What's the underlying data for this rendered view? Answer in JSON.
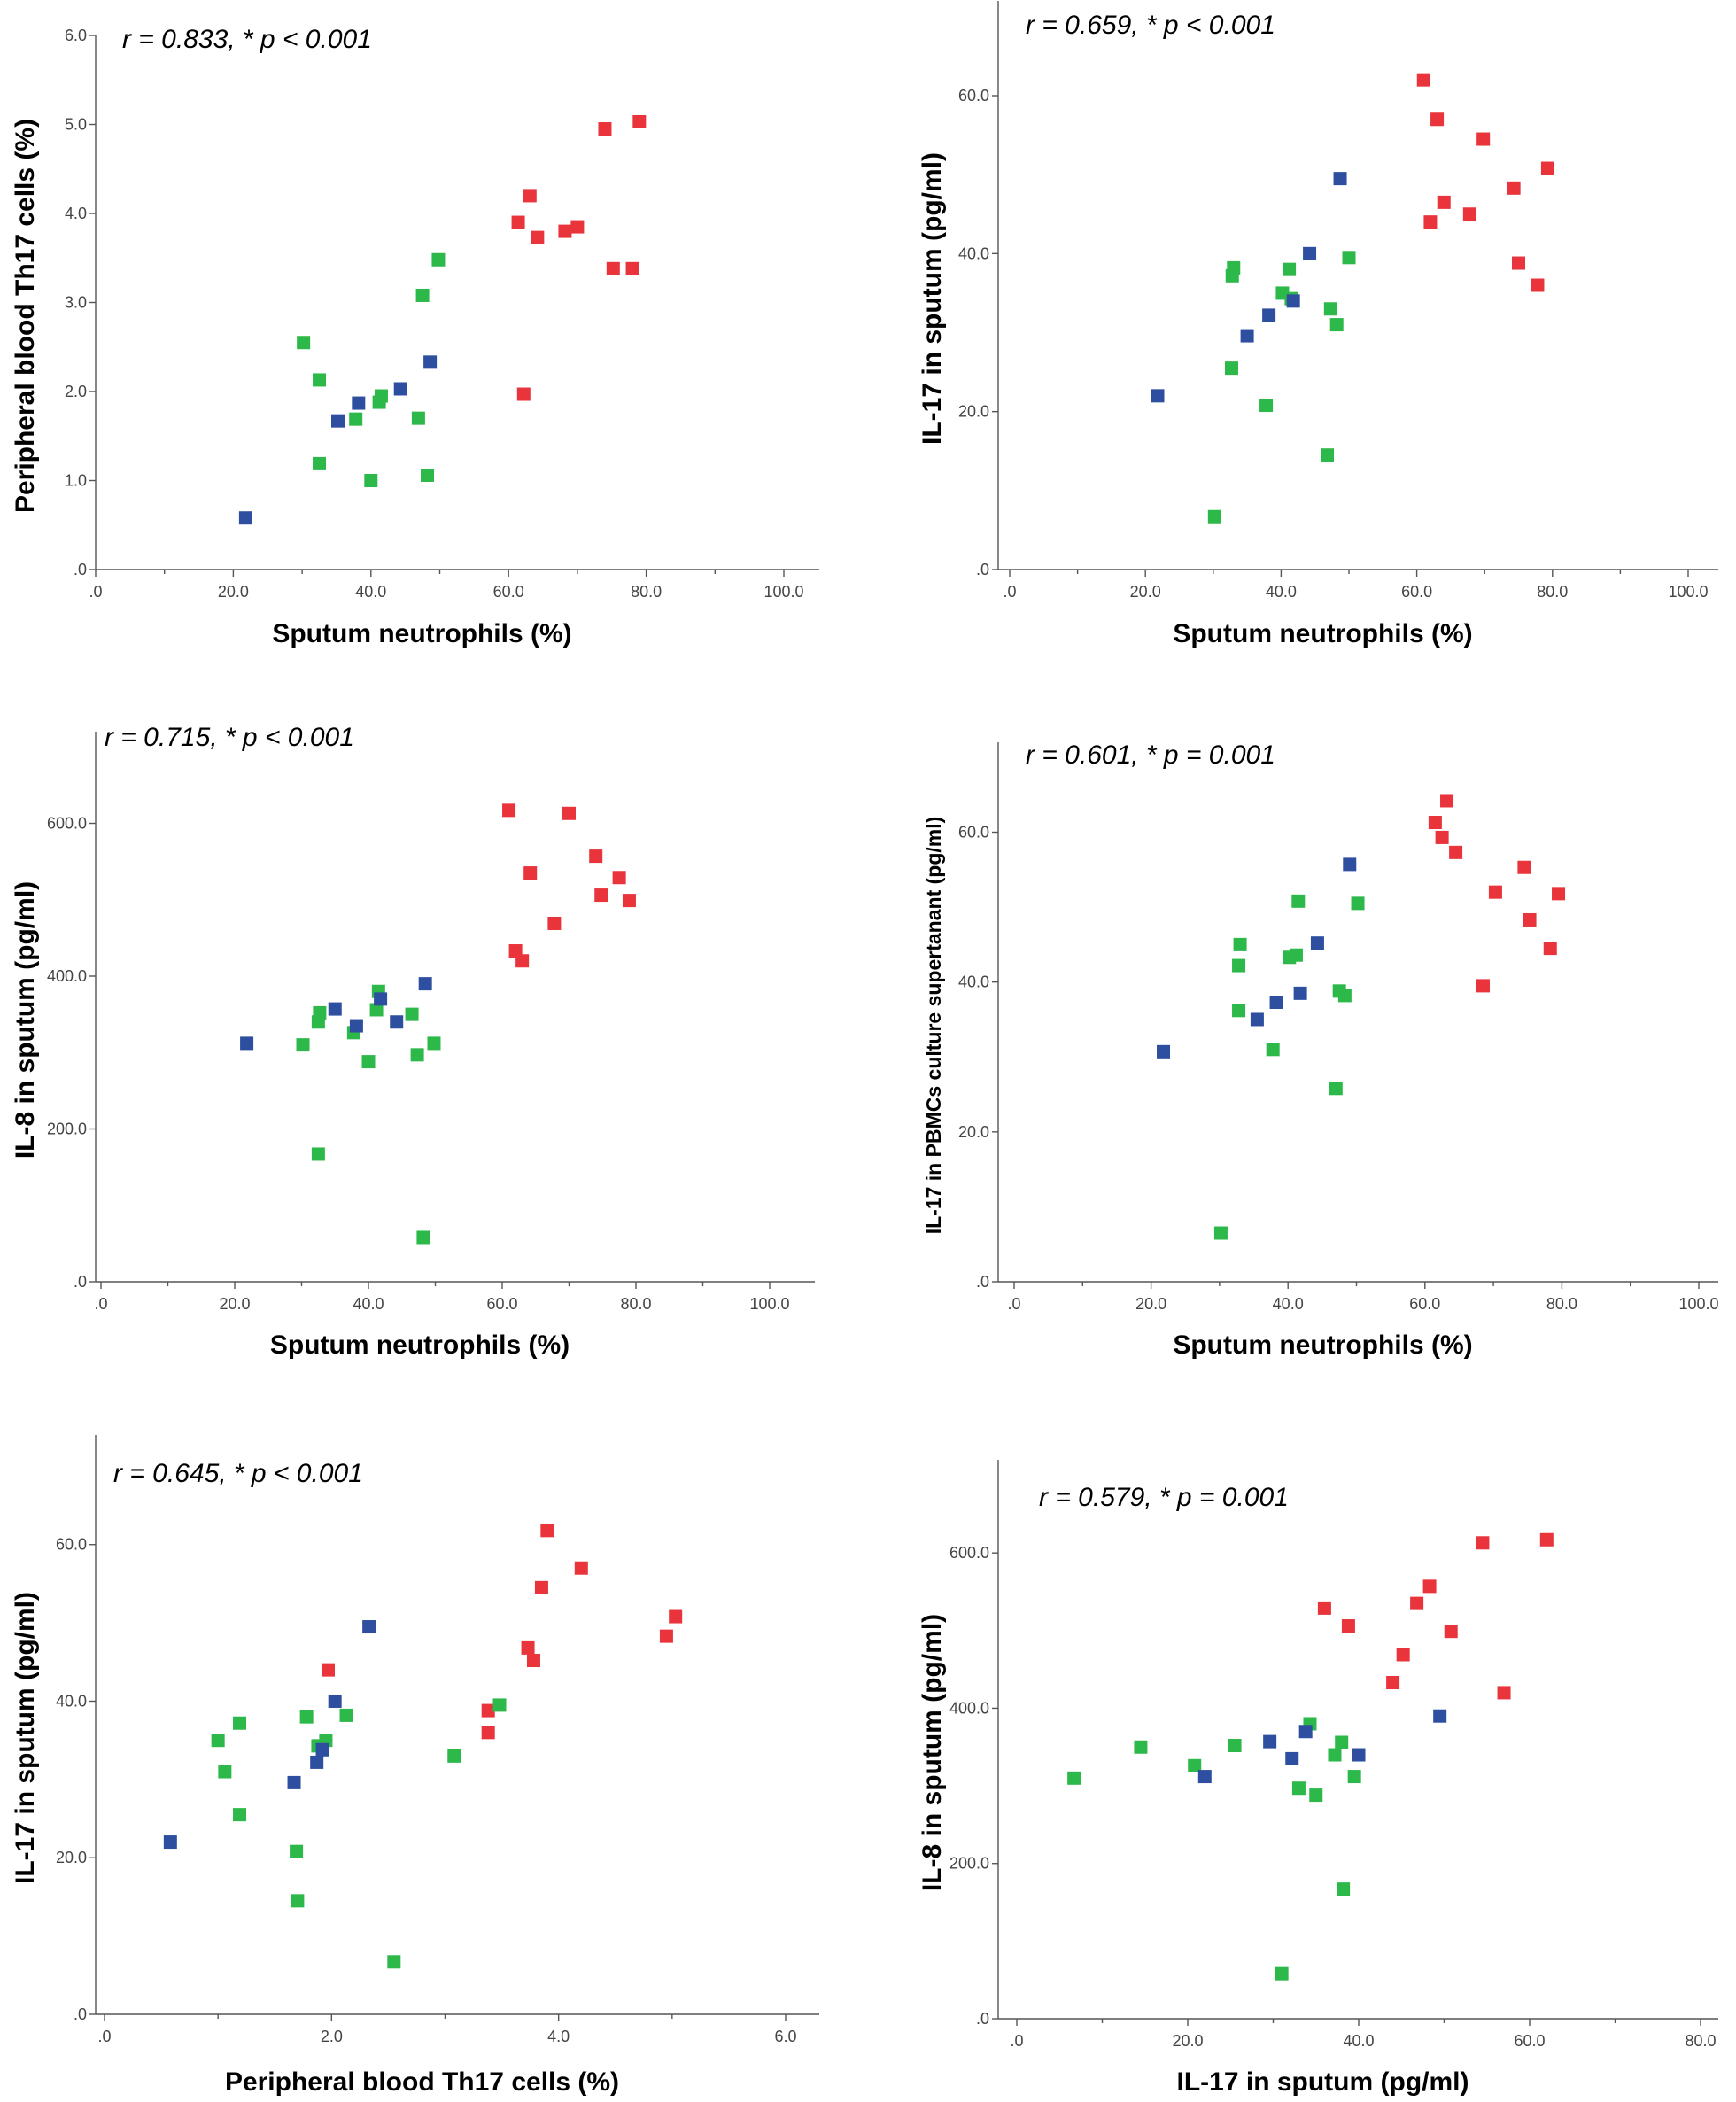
{
  "colors": {
    "red": "#e8343a",
    "green": "#2db84a",
    "blue": "#2e4fa0"
  },
  "chart_data": [
    {
      "type": "scatter",
      "annotation": "r = 0.833, * p < 0.001",
      "xlabel": "Sputum neutrophils (%)",
      "ylabel": "Peripheral blood Th17 cells (%)",
      "xlim": [
        0,
        100
      ],
      "ylim": [
        0,
        6
      ],
      "xticks": [
        0,
        20,
        40,
        60,
        80,
        100
      ],
      "xminor": [
        10,
        30,
        50,
        70,
        90
      ],
      "xtick_labels": [
        ".0",
        "20.0",
        "40.0",
        "60.0",
        "80.0",
        "100.0"
      ],
      "yticks": [
        0,
        1,
        2,
        3,
        4,
        5,
        6
      ],
      "ytick_labels": [
        ".0",
        "1.0",
        "2.0",
        "3.0",
        "4.0",
        "5.0",
        "6.0"
      ],
      "series": [
        {
          "name": "red",
          "color": "red",
          "points": [
            [
              61.4,
              3.9
            ],
            [
              63.1,
              4.2
            ],
            [
              64.2,
              3.73
            ],
            [
              68.2,
              3.8
            ],
            [
              70.0,
              3.85
            ],
            [
              74.0,
              4.95
            ],
            [
              75.2,
              3.38
            ],
            [
              78.0,
              3.38
            ],
            [
              79.0,
              5.03
            ],
            [
              62.2,
              1.97
            ]
          ]
        },
        {
          "name": "green",
          "color": "green",
          "points": [
            [
              30.2,
              2.55
            ],
            [
              32.5,
              2.13
            ],
            [
              32.5,
              1.19
            ],
            [
              37.8,
              1.69
            ],
            [
              40.0,
              1.0
            ],
            [
              41.2,
              1.88
            ],
            [
              41.5,
              1.95
            ],
            [
              46.9,
              1.7
            ],
            [
              47.5,
              3.08
            ],
            [
              48.2,
              1.06
            ],
            [
              49.8,
              3.48
            ]
          ]
        },
        {
          "name": "blue",
          "color": "blue",
          "points": [
            [
              21.8,
              0.58
            ],
            [
              35.2,
              1.67
            ],
            [
              38.2,
              1.87
            ],
            [
              44.3,
              2.03
            ],
            [
              48.6,
              2.33
            ]
          ]
        }
      ]
    },
    {
      "type": "scatter",
      "annotation": "r = 0.659, * p < 0.001",
      "xlabel": "Sputum neutrophils (%)",
      "ylabel": "IL-17 in sputum (pg/ml)",
      "xlim": [
        0,
        100
      ],
      "ylim": [
        0,
        72
      ],
      "xticks": [
        0,
        20,
        40,
        60,
        80,
        100
      ],
      "xminor": [
        10,
        30,
        50,
        70,
        90
      ],
      "xtick_labels": [
        ".0",
        "20.0",
        "40.0",
        "60.0",
        "80.0",
        "100.0"
      ],
      "yticks": [
        0,
        20,
        40,
        60
      ],
      "ytick_labels": [
        ".0",
        "20.0",
        "40.0",
        "60.0"
      ],
      "series": [
        {
          "name": "red",
          "color": "red",
          "points": [
            [
              61.0,
              62.0
            ],
            [
              62.0,
              44.0
            ],
            [
              63.0,
              57.0
            ],
            [
              64.0,
              46.5
            ],
            [
              67.8,
              45.0
            ],
            [
              69.8,
              54.5
            ],
            [
              74.3,
              48.3
            ],
            [
              75.0,
              38.8
            ],
            [
              77.8,
              36.0
            ],
            [
              79.3,
              50.8
            ]
          ]
        },
        {
          "name": "green",
          "color": "green",
          "points": [
            [
              30.2,
              6.7
            ],
            [
              32.7,
              25.5
            ],
            [
              32.8,
              37.2
            ],
            [
              33.0,
              38.2
            ],
            [
              37.8,
              20.8
            ],
            [
              40.2,
              35.0
            ],
            [
              41.2,
              38.0
            ],
            [
              41.5,
              34.3
            ],
            [
              46.8,
              14.5
            ],
            [
              47.3,
              33.0
            ],
            [
              48.2,
              31.0
            ],
            [
              50.0,
              39.5
            ]
          ]
        },
        {
          "name": "blue",
          "color": "blue",
          "points": [
            [
              21.8,
              22.0
            ],
            [
              35.0,
              29.6
            ],
            [
              38.2,
              32.2
            ],
            [
              41.8,
              34.0
            ],
            [
              44.2,
              40.0
            ],
            [
              48.7,
              49.5
            ]
          ]
        }
      ]
    },
    {
      "type": "scatter",
      "annotation": "r = 0.715, * p < 0.001",
      "xlabel": "Sputum neutrophils (%)",
      "ylabel": "IL-8 in sputum (pg/ml)",
      "xlim": [
        0,
        100
      ],
      "ylim": [
        0,
        720
      ],
      "xticks": [
        0,
        20,
        40,
        60,
        80,
        100
      ],
      "xminor": [
        10,
        30,
        50,
        70,
        90
      ],
      "xtick_labels": [
        ".0",
        "20.0",
        "40.0",
        "60.0",
        "80.0",
        "100.0"
      ],
      "yticks": [
        0,
        200,
        400,
        600
      ],
      "ytick_labels": [
        ".0",
        "200.0",
        "400.0",
        "600.0"
      ],
      "series": [
        {
          "name": "red",
          "color": "red",
          "points": [
            [
              61.0,
              617
            ],
            [
              62.0,
              433
            ],
            [
              63.0,
              420
            ],
            [
              64.2,
              535
            ],
            [
              67.8,
              469
            ],
            [
              70.0,
              613
            ],
            [
              74.0,
              557
            ],
            [
              74.8,
              506
            ],
            [
              77.5,
              529
            ],
            [
              79.0,
              499
            ]
          ]
        },
        {
          "name": "green",
          "color": "green",
          "points": [
            [
              30.2,
              310
            ],
            [
              32.5,
              167
            ],
            [
              32.5,
              340
            ],
            [
              32.7,
              352
            ],
            [
              37.8,
              326
            ],
            [
              40.0,
              288
            ],
            [
              41.2,
              356
            ],
            [
              41.5,
              380
            ],
            [
              46.5,
              350
            ],
            [
              47.3,
              297
            ],
            [
              48.2,
              58
            ],
            [
              49.8,
              312
            ]
          ]
        },
        {
          "name": "blue",
          "color": "blue",
          "points": [
            [
              21.8,
              312
            ],
            [
              35.0,
              357
            ],
            [
              38.2,
              335
            ],
            [
              41.8,
              370
            ],
            [
              44.2,
              340
            ],
            [
              48.5,
              390
            ]
          ]
        }
      ]
    },
    {
      "type": "scatter",
      "annotation": "r = 0.601, * p = 0.001",
      "xlabel": "Sputum neutrophils (%)",
      "ylabel": "IL-17 in PBMCs culture supertanant (pg/ml)",
      "xlim": [
        0,
        100
      ],
      "ylim": [
        0,
        72
      ],
      "xticks": [
        0,
        20,
        40,
        60,
        80,
        100
      ],
      "xminor": [
        10,
        30,
        50,
        70,
        90
      ],
      "xtick_labels": [
        ".0",
        "20.0",
        "40.0",
        "60.0",
        "80.0",
        "100.0"
      ],
      "yticks": [
        0,
        20,
        40,
        60
      ],
      "ytick_labels": [
        ".0",
        "20.0",
        "40.0",
        "60.0"
      ],
      "series": [
        {
          "name": "red",
          "color": "red",
          "points": [
            [
              61.5,
              61.3
            ],
            [
              62.5,
              59.3
            ],
            [
              63.2,
              64.2
            ],
            [
              64.5,
              57.3
            ],
            [
              68.5,
              39.5
            ],
            [
              70.3,
              52.0
            ],
            [
              74.5,
              55.3
            ],
            [
              75.3,
              48.3
            ],
            [
              78.3,
              44.5
            ],
            [
              79.5,
              51.8
            ]
          ]
        },
        {
          "name": "green",
          "color": "green",
          "points": [
            [
              30.2,
              6.5
            ],
            [
              32.8,
              36.2
            ],
            [
              32.8,
              42.2
            ],
            [
              33.0,
              45.0
            ],
            [
              37.8,
              31.0
            ],
            [
              40.2,
              43.3
            ],
            [
              41.2,
              43.6
            ],
            [
              41.5,
              50.8
            ],
            [
              47.0,
              25.8
            ],
            [
              47.5,
              38.8
            ],
            [
              48.3,
              38.2
            ],
            [
              50.2,
              50.5
            ]
          ]
        },
        {
          "name": "blue",
          "color": "blue",
          "points": [
            [
              21.8,
              30.7
            ],
            [
              35.5,
              35.0
            ],
            [
              38.3,
              37.3
            ],
            [
              41.8,
              38.5
            ],
            [
              44.3,
              45.2
            ],
            [
              49.0,
              55.7
            ]
          ]
        }
      ]
    },
    {
      "type": "scatter",
      "annotation": "r = 0.645, * p < 0.001",
      "xlabel": "Peripheral blood Th17 cells (%)",
      "ylabel": "IL-17 in sputum (pg/ml)",
      "xlim": [
        0,
        6
      ],
      "ylim": [
        0,
        74
      ],
      "xticks": [
        0,
        2,
        4,
        6
      ],
      "xminor": [
        1,
        3,
        5
      ],
      "xtick_labels": [
        ".0",
        "2.0",
        "4.0",
        "6.0"
      ],
      "yticks": [
        0,
        20,
        40,
        60
      ],
      "ytick_labels": [
        ".0",
        "20.0",
        "40.0",
        "60.0"
      ],
      "series": [
        {
          "name": "red",
          "color": "red",
          "points": [
            [
              1.97,
              44.0
            ],
            [
              3.38,
              38.8
            ],
            [
              3.38,
              36.0
            ],
            [
              3.73,
              46.8
            ],
            [
              3.78,
              45.2
            ],
            [
              3.85,
              54.5
            ],
            [
              3.9,
              61.8
            ],
            [
              4.2,
              57.0
            ],
            [
              4.95,
              48.3
            ],
            [
              5.03,
              50.8
            ]
          ]
        },
        {
          "name": "green",
          "color": "green",
          "points": [
            [
              1.0,
              35.0
            ],
            [
              1.06,
              31.0
            ],
            [
              1.19,
              37.2
            ],
            [
              1.19,
              25.5
            ],
            [
              1.69,
              20.8
            ],
            [
              1.7,
              14.5
            ],
            [
              1.78,
              38.0
            ],
            [
              1.88,
              34.3
            ],
            [
              1.95,
              35.0
            ],
            [
              2.13,
              38.2
            ],
            [
              2.55,
              6.7
            ],
            [
              3.08,
              33.0
            ],
            [
              3.48,
              39.5
            ]
          ]
        },
        {
          "name": "blue",
          "color": "blue",
          "points": [
            [
              0.58,
              22.0
            ],
            [
              1.67,
              29.6
            ],
            [
              1.87,
              32.2
            ],
            [
              1.92,
              33.8
            ],
            [
              2.03,
              40.0
            ],
            [
              2.33,
              49.5
            ]
          ]
        }
      ]
    },
    {
      "type": "scatter",
      "annotation": "r = 0.579, * p = 0.001",
      "xlabel": "IL-17 in sputum (pg/ml)",
      "ylabel": "IL-8 in sputum (pg/ml)",
      "xlim": [
        0,
        80
      ],
      "ylim": [
        0,
        720
      ],
      "xticks": [
        0,
        20,
        40,
        60,
        80
      ],
      "xminor": [
        10,
        30,
        50,
        70
      ],
      "xtick_labels": [
        ".0",
        "20.0",
        "40.0",
        "60.0",
        "80.0"
      ],
      "yticks": [
        0,
        200,
        400,
        600
      ],
      "ytick_labels": [
        ".0",
        "200.0",
        "400.0",
        "600.0"
      ],
      "series": [
        {
          "name": "red",
          "color": "red",
          "points": [
            [
              36.0,
              529
            ],
            [
              38.8,
              506
            ],
            [
              44.0,
              433
            ],
            [
              45.2,
              469
            ],
            [
              46.8,
              535
            ],
            [
              48.3,
              557
            ],
            [
              50.8,
              499
            ],
            [
              54.5,
              613
            ],
            [
              57.0,
              420
            ],
            [
              62.0,
              617
            ]
          ]
        },
        {
          "name": "green",
          "color": "green",
          "points": [
            [
              6.7,
              310
            ],
            [
              14.5,
              350
            ],
            [
              20.8,
              326
            ],
            [
              25.5,
              352
            ],
            [
              31.0,
              58
            ],
            [
              33.0,
              297
            ],
            [
              34.3,
              380
            ],
            [
              35.0,
              288
            ],
            [
              37.2,
              340
            ],
            [
              38.0,
              356
            ],
            [
              38.2,
              167
            ],
            [
              39.5,
              312
            ]
          ]
        },
        {
          "name": "blue",
          "color": "blue",
          "points": [
            [
              22.0,
              312
            ],
            [
              29.6,
              357
            ],
            [
              32.2,
              335
            ],
            [
              33.8,
              370
            ],
            [
              40.0,
              340
            ],
            [
              49.5,
              390
            ]
          ]
        }
      ]
    }
  ]
}
